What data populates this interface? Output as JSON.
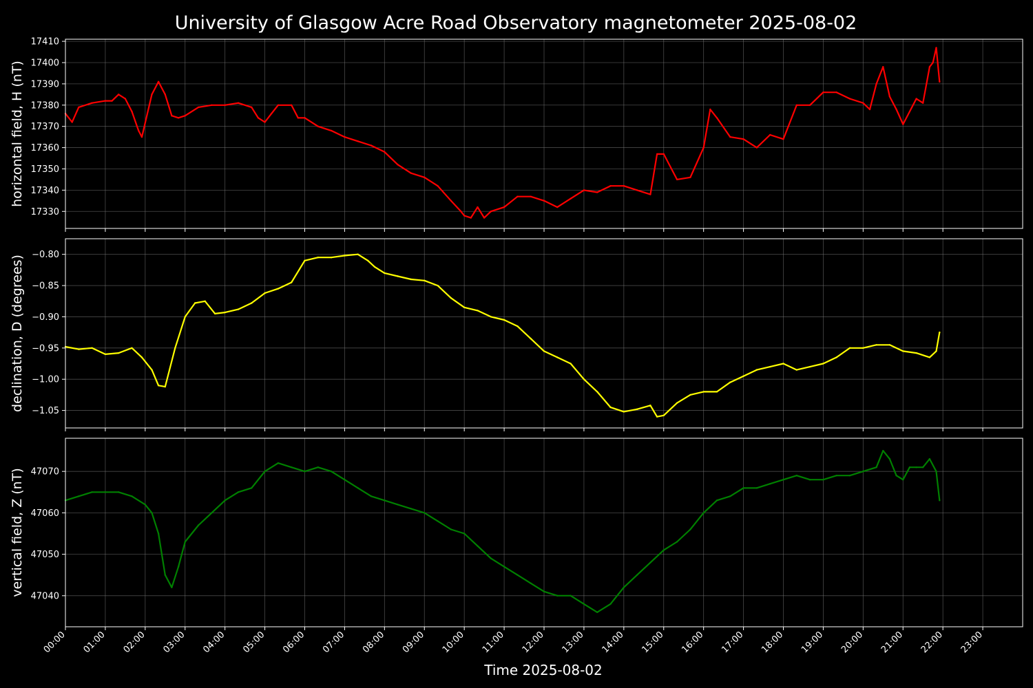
{
  "chart_data": {
    "type": "line",
    "title": "University of Glasgow Acre Road Observatory magnetometer 2025-08-02",
    "xlabel": "Time 2025-08-02",
    "x_ticks": [
      "00:00",
      "01:00",
      "02:00",
      "03:00",
      "04:00",
      "05:00",
      "06:00",
      "07:00",
      "08:00",
      "09:00",
      "10:00",
      "11:00",
      "12:00",
      "13:00",
      "14:00",
      "15:00",
      "16:00",
      "17:00",
      "18:00",
      "19:00",
      "20:00",
      "21:00",
      "22:00",
      "23:00"
    ],
    "xlim": [
      "2025-08-02 00:00",
      "2025-08-02 24:00"
    ],
    "background": "#000000",
    "grid": true,
    "panels": [
      {
        "name": "H",
        "ylabel": "horizontal field, H (nT)",
        "color": "#ff0000",
        "ylim": [
          17322,
          17411
        ],
        "yticks": [
          "17330",
          "17340",
          "17350",
          "17360",
          "17370",
          "17380",
          "17390",
          "17400",
          "17410"
        ],
        "x": [
          "00:00",
          "00:10",
          "00:20",
          "00:40",
          "01:00",
          "01:10",
          "01:20",
          "01:30",
          "01:40",
          "01:50",
          "01:55",
          "02:10",
          "02:20",
          "02:30",
          "02:40",
          "02:50",
          "03:00",
          "03:20",
          "03:40",
          "04:00",
          "04:20",
          "04:40",
          "04:50",
          "05:00",
          "05:10",
          "05:20",
          "05:40",
          "05:50",
          "06:00",
          "06:20",
          "06:40",
          "07:00",
          "07:20",
          "07:40",
          "08:00",
          "08:20",
          "08:40",
          "09:00",
          "09:20",
          "09:40",
          "09:55",
          "10:00",
          "10:10",
          "10:20",
          "10:30",
          "10:40",
          "11:00",
          "11:20",
          "11:40",
          "12:00",
          "12:20",
          "12:40",
          "13:00",
          "13:20",
          "13:40",
          "14:00",
          "14:20",
          "14:40",
          "14:50",
          "15:00",
          "15:20",
          "15:40",
          "16:00",
          "16:10",
          "16:20",
          "16:40",
          "17:00",
          "17:20",
          "17:40",
          "18:00",
          "18:20",
          "18:40",
          "19:00",
          "19:20",
          "19:40",
          "20:00",
          "20:10",
          "20:20",
          "20:30",
          "20:40",
          "20:50",
          "21:00",
          "21:20",
          "21:30",
          "21:40",
          "21:45",
          "21:50",
          "21:55"
        ],
        "y": [
          17376,
          17372,
          17379,
          17381,
          17382,
          17382,
          17385,
          17383,
          17377,
          17368,
          17365,
          17385,
          17391,
          17385,
          17375,
          17374,
          17375,
          17379,
          17380,
          17380,
          17381,
          17379,
          17374,
          17372,
          17376,
          17380,
          17380,
          17374,
          17374,
          17370,
          17368,
          17365,
          17363,
          17361,
          17358,
          17352,
          17348,
          17346,
          17342,
          17335,
          17330,
          17328,
          17327,
          17332,
          17327,
          17330,
          17332,
          17337,
          17337,
          17335,
          17332,
          17336,
          17340,
          17339,
          17342,
          17342,
          17340,
          17338,
          17357,
          17357,
          17345,
          17346,
          17360,
          17378,
          17374,
          17365,
          17364,
          17360,
          17366,
          17364,
          17380,
          17380,
          17386,
          17386,
          17383,
          17381,
          17378,
          17390,
          17398,
          17384,
          17378,
          17371,
          17383,
          17381,
          17398,
          17400,
          17407,
          17391
        ]
      },
      {
        "name": "D",
        "ylabel": "declination, D (degrees)",
        "color": "#ffff00",
        "ylim": [
          -1.078,
          -0.775
        ],
        "yticks": [
          "−1.05",
          "−1.00",
          "−0.95",
          "−0.90",
          "−0.85",
          "−0.80"
        ],
        "x": [
          "00:00",
          "00:20",
          "00:40",
          "01:00",
          "01:20",
          "01:40",
          "01:55",
          "02:10",
          "02:20",
          "02:30",
          "02:45",
          "03:00",
          "03:15",
          "03:30",
          "03:45",
          "04:00",
          "04:20",
          "04:40",
          "05:00",
          "05:20",
          "05:40",
          "06:00",
          "06:20",
          "06:40",
          "07:00",
          "07:20",
          "07:35",
          "07:45",
          "08:00",
          "08:20",
          "08:40",
          "09:00",
          "09:20",
          "09:40",
          "10:00",
          "10:20",
          "10:40",
          "11:00",
          "11:20",
          "11:40",
          "12:00",
          "12:20",
          "12:40",
          "13:00",
          "13:20",
          "13:40",
          "14:00",
          "14:20",
          "14:40",
          "14:50",
          "15:00",
          "15:20",
          "15:40",
          "16:00",
          "16:20",
          "16:40",
          "17:00",
          "17:20",
          "17:40",
          "18:00",
          "18:20",
          "18:40",
          "19:00",
          "19:20",
          "19:40",
          "20:00",
          "20:20",
          "20:40",
          "21:00",
          "21:20",
          "21:40",
          "21:50",
          "21:55"
        ],
        "y": [
          -0.948,
          -0.952,
          -0.95,
          -0.96,
          -0.958,
          -0.95,
          -0.965,
          -0.985,
          -1.01,
          -1.012,
          -0.95,
          -0.9,
          -0.878,
          -0.875,
          -0.895,
          -0.893,
          -0.888,
          -0.878,
          -0.862,
          -0.855,
          -0.845,
          -0.81,
          -0.805,
          -0.805,
          -0.802,
          -0.8,
          -0.81,
          -0.82,
          -0.83,
          -0.835,
          -0.84,
          -0.842,
          -0.85,
          -0.87,
          -0.885,
          -0.89,
          -0.9,
          -0.905,
          -0.915,
          -0.935,
          -0.955,
          -0.965,
          -0.975,
          -1.0,
          -1.02,
          -1.045,
          -1.052,
          -1.048,
          -1.042,
          -1.06,
          -1.058,
          -1.038,
          -1.025,
          -1.02,
          -1.02,
          -1.005,
          -0.995,
          -0.985,
          -0.98,
          -0.975,
          -0.985,
          -0.98,
          -0.975,
          -0.965,
          -0.95,
          -0.95,
          -0.945,
          -0.945,
          -0.955,
          -0.958,
          -0.965,
          -0.955,
          -0.925
        ]
      },
      {
        "name": "Z",
        "ylabel": "vertical field, Z (nT)",
        "color": "#008000",
        "ylim": [
          47032.5,
          47078
        ],
        "yticks": [
          "47040",
          "47050",
          "47060",
          "47070"
        ],
        "x": [
          "00:00",
          "00:20",
          "00:40",
          "01:00",
          "01:20",
          "01:40",
          "02:00",
          "02:10",
          "02:20",
          "02:30",
          "02:40",
          "02:50",
          "03:00",
          "03:20",
          "03:40",
          "04:00",
          "04:20",
          "04:40",
          "05:00",
          "05:20",
          "05:40",
          "06:00",
          "06:20",
          "06:40",
          "07:00",
          "07:20",
          "07:40",
          "08:00",
          "08:20",
          "08:40",
          "09:00",
          "09:20",
          "09:40",
          "10:00",
          "10:20",
          "10:40",
          "11:00",
          "11:20",
          "11:40",
          "12:00",
          "12:20",
          "12:40",
          "13:00",
          "13:20",
          "13:40",
          "14:00",
          "14:20",
          "14:40",
          "15:00",
          "15:20",
          "15:40",
          "16:00",
          "16:20",
          "16:40",
          "17:00",
          "17:20",
          "17:40",
          "18:00",
          "18:20",
          "18:40",
          "19:00",
          "19:20",
          "19:40",
          "20:00",
          "20:20",
          "20:30",
          "20:40",
          "20:50",
          "21:00",
          "21:10",
          "21:20",
          "21:30",
          "21:40",
          "21:50",
          "21:55"
        ],
        "y": [
          47063,
          47064,
          47065,
          47065,
          47065,
          47064,
          47062,
          47060,
          47055,
          47045,
          47042,
          47047,
          47053,
          47057,
          47060,
          47063,
          47065,
          47066,
          47070,
          47072,
          47071,
          47070,
          47071,
          47070,
          47068,
          47066,
          47064,
          47063,
          47062,
          47061,
          47060,
          47058,
          47056,
          47055,
          47052,
          47049,
          47047,
          47045,
          47043,
          47041,
          47040,
          47040,
          47038,
          47036,
          47038,
          47042,
          47045,
          47048,
          47051,
          47053,
          47056,
          47060,
          47063,
          47064,
          47066,
          47066,
          47067,
          47068,
          47069,
          47068,
          47068,
          47069,
          47069,
          47070,
          47071,
          47075,
          47073,
          47069,
          47068,
          47071,
          47071,
          47071,
          47073,
          47070,
          47063
        ]
      }
    ]
  }
}
